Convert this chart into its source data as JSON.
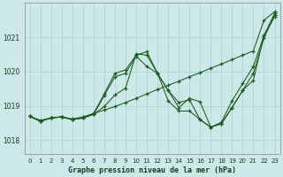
{
  "xlabel": "Graphe pression niveau de la mer (hPa)",
  "bg_color": "#cce8e8",
  "grid_color": "#aad0d0",
  "line_color": "#1a5c1a",
  "xlim": [
    -0.5,
    23.5
  ],
  "ylim": [
    1017.6,
    1022.0
  ],
  "yticks": [
    1018,
    1019,
    1020,
    1021
  ],
  "xticks": [
    0,
    1,
    2,
    3,
    4,
    5,
    6,
    7,
    8,
    9,
    10,
    11,
    12,
    13,
    14,
    15,
    16,
    17,
    18,
    19,
    20,
    21,
    22,
    23
  ],
  "series": [
    [
      1018.7,
      1018.58,
      1018.65,
      1018.68,
      1018.62,
      1018.68,
      1018.78,
      1018.88,
      1018.98,
      1019.1,
      1019.22,
      1019.35,
      1019.48,
      1019.6,
      1019.72,
      1019.85,
      1019.97,
      1020.1,
      1020.22,
      1020.35,
      1020.48,
      1020.6,
      1021.5,
      1021.75
    ],
    [
      1018.7,
      1018.55,
      1018.65,
      1018.68,
      1018.6,
      1018.65,
      1018.75,
      1019.3,
      1019.85,
      1019.95,
      1020.45,
      1020.15,
      1019.95,
      1019.45,
      1019.1,
      1019.18,
      1018.6,
      1018.38,
      1018.52,
      1019.15,
      1019.65,
      1020.15,
      1021.05,
      1021.6
    ],
    [
      1018.7,
      1018.55,
      1018.65,
      1018.68,
      1018.6,
      1018.65,
      1018.78,
      1019.35,
      1019.95,
      1020.05,
      1020.48,
      1020.58,
      1019.95,
      1019.15,
      1018.85,
      1018.85,
      1018.6,
      1018.38,
      1018.48,
      1018.95,
      1019.45,
      1019.75,
      1021.05,
      1021.7
    ],
    [
      1018.7,
      1018.55,
      1018.65,
      1018.68,
      1018.6,
      1018.65,
      1018.75,
      1018.98,
      1019.32,
      1019.52,
      1020.52,
      1020.48,
      1019.95,
      1019.45,
      1018.95,
      1019.22,
      1019.12,
      1018.38,
      1018.48,
      1018.95,
      1019.45,
      1019.95,
      1020.98,
      1021.65
    ]
  ]
}
